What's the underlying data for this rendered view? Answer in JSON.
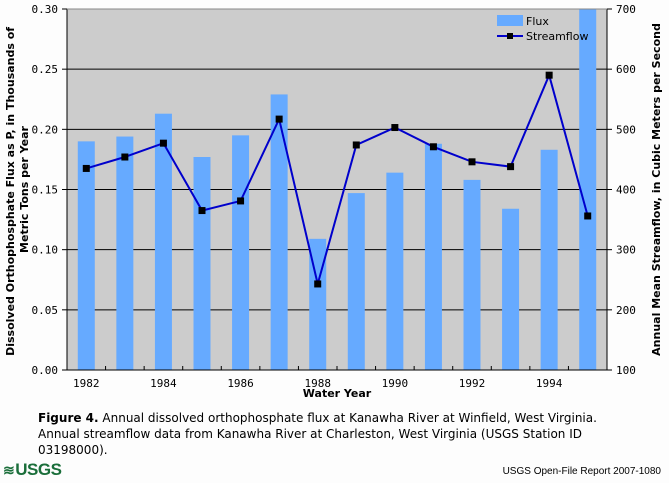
{
  "chart_data": {
    "type": "bar+line",
    "xlabel": "Water Year",
    "ylabel_left": "Dissolved Orthophosphate Flux as P, in Thousands of Metric Tons per Year",
    "ylabel_left_lines": [
      "Dissolved Orthophosphate Flux as P, in Thousands of",
      "Metric Tons per Year"
    ],
    "ylabel_right": "Annual Mean Streamflow, in Cubic Meters per Second",
    "categories": [
      1982,
      1983,
      1984,
      1985,
      1986,
      1987,
      1988,
      1989,
      1990,
      1991,
      1992,
      1993,
      1994,
      1995
    ],
    "x_tick_labels": [
      "1982",
      "1984",
      "1986",
      "1988",
      "1990",
      "1992",
      "1994"
    ],
    "ylim_left": [
      0,
      0.3
    ],
    "yticks_left": [
      "0.00",
      "0.05",
      "0.10",
      "0.15",
      "0.20",
      "0.25",
      "0.30"
    ],
    "ylim_right": [
      100,
      700
    ],
    "yticks_right": [
      "100",
      "200",
      "300",
      "400",
      "500",
      "600",
      "700"
    ],
    "grid": "horizontal",
    "legend_position": "top-right",
    "series": [
      {
        "name": "Flux",
        "type": "bar",
        "axis": "left",
        "color": "#66aaff",
        "values": [
          0.19,
          0.194,
          0.213,
          0.177,
          0.195,
          0.229,
          0.109,
          0.147,
          0.164,
          0.188,
          0.158,
          0.134,
          0.183,
          0.3
        ]
      },
      {
        "name": "Streamflow",
        "type": "line",
        "axis": "right",
        "color": "#0000cc",
        "marker_color": "#000000",
        "values": [
          435,
          454,
          477,
          365,
          381,
          517,
          243,
          474,
          503,
          471,
          446,
          438,
          590,
          356
        ]
      }
    ]
  },
  "caption": {
    "label": "Figure 4.",
    "text": " Annual dissolved orthophosphate flux at Kanawha River at Winfield, West Virginia. Annual streamflow data from Kanawha River at Charleston, West Virginia (USGS Station ID 03198000)."
  },
  "footer": {
    "logo": "USGS",
    "report": "USGS Open-File Report 2007-1080"
  },
  "colors": {
    "plot_bg": "#cccccc",
    "bar": "#66aaff",
    "line": "#0000cc"
  }
}
